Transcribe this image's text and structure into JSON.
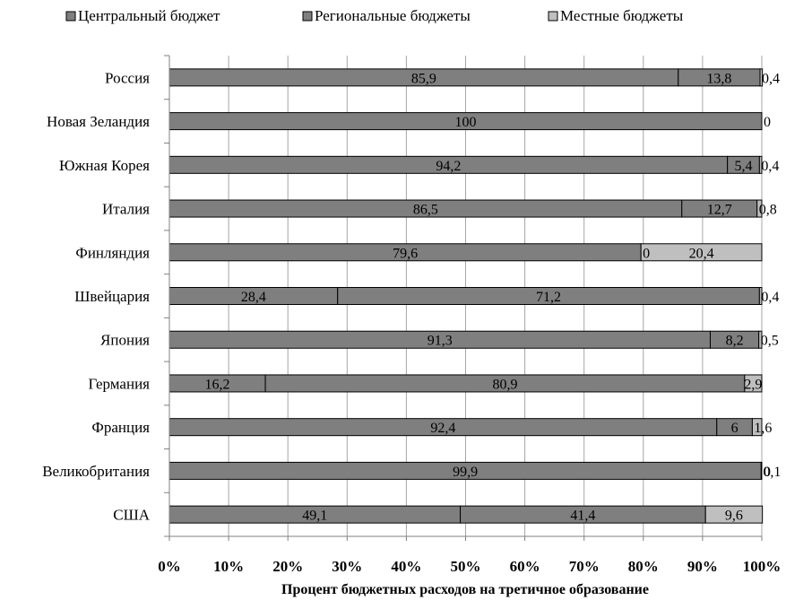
{
  "chart_data": {
    "type": "bar",
    "orientation": "horizontal",
    "stacked": "percent",
    "title": "",
    "xlabel": "Процент бюджетных расходов на третичное образование",
    "ylabel": "",
    "xlim": [
      0,
      100
    ],
    "x_ticks": [
      "0%",
      "10%",
      "20%",
      "30%",
      "40%",
      "50%",
      "60%",
      "70%",
      "80%",
      "90%",
      "100%"
    ],
    "grid": "vertical",
    "legend": "top",
    "categories": [
      "Россия",
      "Новая Зеландия",
      "Южная Корея",
      "Италия",
      "Финляндия",
      "Швейцария",
      "Япония",
      "Германия",
      "Франция",
      "Великобритания",
      "США"
    ],
    "series": [
      {
        "name": "Центральный бюджет",
        "color": "#7f7f7f",
        "values": [
          85.9,
          100,
          94.2,
          86.5,
          79.6,
          28.4,
          91.3,
          16.2,
          92.4,
          99.9,
          49.1
        ],
        "labels": [
          "85,9",
          "100",
          "94,2",
          "86,5",
          "79,6",
          "28,4",
          "91,3",
          "16,2",
          "92,4",
          "99,9",
          "49,1"
        ]
      },
      {
        "name": "Региональные бюджеты",
        "color": "#7f7f7f",
        "values": [
          13.8,
          0,
          5.4,
          12.7,
          0,
          71.2,
          8.2,
          80.9,
          6,
          0.1,
          41.4
        ],
        "labels": [
          "13,8",
          "",
          "5,4",
          "12,7",
          "0",
          "71,2",
          "8,2",
          "80,9",
          "6",
          "0,1",
          "41,4"
        ]
      },
      {
        "name": "Местные бюджеты",
        "color": "#bfbfbf",
        "values": [
          0.4,
          0,
          0.4,
          0.8,
          20.4,
          0.4,
          0.5,
          2.9,
          1.6,
          0,
          9.6
        ],
        "labels": [
          "0,4",
          "0",
          "0,4",
          "0,8",
          "20,4",
          "0,4",
          "0,5",
          "2,9",
          "1,6",
          "0",
          "9,6"
        ]
      }
    ]
  }
}
